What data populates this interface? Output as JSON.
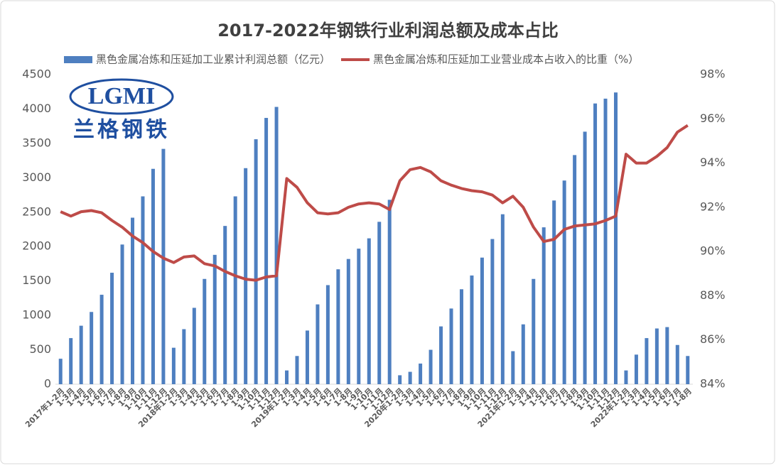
{
  "chart_data": {
    "type": "bar_line",
    "title": "2017-2022年钢铁行业利润总额及成本占比",
    "logo_text": "LGMI",
    "logo_subtext": "兰格钢铁",
    "categories": [
      "2017年1-2月",
      "1-3月",
      "1-4月",
      "1-5月",
      "1-6月",
      "1-7月",
      "1-8月",
      "1-9月",
      "1-10月",
      "1-11月",
      "1-12月",
      "2018年1-2月",
      "1-3月",
      "1-4月",
      "1-5月",
      "1-6月",
      "1-7月",
      "1-8月",
      "1-9月",
      "1-10月",
      "1-11月",
      "1-12月",
      "2019年1-2月",
      "1-3月",
      "1-4月",
      "1-5月",
      "1-6月",
      "1-7月",
      "1-8月",
      "1-9月",
      "1-10月",
      "1-11月",
      "1-12月",
      "2020年1-2月",
      "1-3月",
      "1-4月",
      "1-5月",
      "1-6月",
      "1-7月",
      "1-8月",
      "1-9月",
      "1-10月",
      "1-11月",
      "1-12月",
      "2021年1-2月",
      "1-3月",
      "1-4月",
      "1-5月",
      "1-6月",
      "1-7月",
      "1-8月",
      "1-9月",
      "1-10月",
      "1-11月",
      "1-12月",
      "2022年1-2月",
      "1-3月",
      "1-4月",
      "1-5月",
      "1-6月",
      "1-7月",
      "1-8月"
    ],
    "series": [
      {
        "name": "黑色金属冶炼和压延加工业累计利润总额（亿元）",
        "type": "bar",
        "color": "#4e7fc0",
        "values": [
          370,
          670,
          850,
          1050,
          1300,
          1620,
          2030,
          2420,
          2730,
          3130,
          3420,
          530,
          800,
          1110,
          1530,
          1880,
          2300,
          2730,
          3140,
          3560,
          3870,
          4030,
          200,
          410,
          780,
          1160,
          1440,
          1670,
          1820,
          1970,
          2120,
          2360,
          2680,
          130,
          180,
          300,
          500,
          840,
          1100,
          1380,
          1580,
          1840,
          2110,
          2470,
          480,
          870,
          1530,
          2280,
          2670,
          2960,
          3330,
          3670,
          4080,
          4150,
          4240,
          200,
          430,
          670,
          810,
          830,
          570,
          410
        ]
      },
      {
        "name": "黑色金属冶炼和压延加工业营业成本占收入的比重（%）",
        "type": "line",
        "axis": "y2",
        "color": "#be4b48",
        "values": [
          91.8,
          91.6,
          91.8,
          91.85,
          91.75,
          91.4,
          91.1,
          90.7,
          90.4,
          90.0,
          89.7,
          89.5,
          89.75,
          89.8,
          89.45,
          89.35,
          89.1,
          88.9,
          88.75,
          88.7,
          88.85,
          88.9,
          93.3,
          92.9,
          92.2,
          91.75,
          91.7,
          91.75,
          92.0,
          92.15,
          92.2,
          92.15,
          91.9,
          93.2,
          93.7,
          93.8,
          93.6,
          93.2,
          93.0,
          92.85,
          92.75,
          92.7,
          92.55,
          92.2,
          92.5,
          92.0,
          91.1,
          90.45,
          90.55,
          91.0,
          91.15,
          91.2,
          91.25,
          91.4,
          91.6,
          94.4,
          94.0,
          94.0,
          94.3,
          94.7,
          95.4,
          95.7
        ]
      }
    ],
    "ylim": [
      0,
      4500
    ],
    "yticks": [
      0,
      500,
      1000,
      1500,
      2000,
      2500,
      3000,
      3500,
      4000,
      4500
    ],
    "y2lim": [
      84,
      98
    ],
    "y2ticks": [
      {
        "value": 84,
        "label": "84%"
      },
      {
        "value": 86,
        "label": "86%"
      },
      {
        "value": 88,
        "label": "88%"
      },
      {
        "value": 90,
        "label": "90%"
      },
      {
        "value": 92,
        "label": "92%"
      },
      {
        "value": 94,
        "label": "94%"
      },
      {
        "value": 96,
        "label": "96%"
      },
      {
        "value": 98,
        "label": "98%"
      }
    ],
    "grid": false,
    "legend": "top"
  }
}
